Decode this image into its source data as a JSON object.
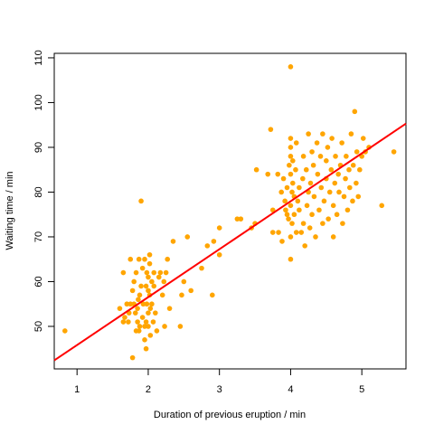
{
  "chart_data": {
    "type": "scatter",
    "title": "",
    "xlabel": "Duration of previous eruption / min",
    "ylabel": "Waiting time / min",
    "xlim": [
      0.68,
      5.62
    ],
    "ylim": [
      40.5,
      111.0
    ],
    "xticks": [
      1,
      2,
      3,
      4,
      5
    ],
    "yticks": [
      50,
      60,
      70,
      80,
      90,
      100,
      110
    ],
    "grid": false,
    "point_color": "#FFA500",
    "line_color": "#FF0000",
    "regression_line": {
      "x": [
        0.68,
        5.62
      ],
      "y": [
        42.4,
        95.3
      ]
    },
    "series": [
      {
        "values": [
          [
            0.83,
            49
          ],
          [
            1.6,
            54
          ],
          [
            1.65,
            51
          ],
          [
            1.65,
            62
          ],
          [
            1.67,
            52
          ],
          [
            1.7,
            55
          ],
          [
            1.72,
            51
          ],
          [
            1.73,
            53
          ],
          [
            1.75,
            55
          ],
          [
            1.75,
            65
          ],
          [
            1.78,
            58
          ],
          [
            1.78,
            43
          ],
          [
            1.8,
            55
          ],
          [
            1.8,
            60
          ],
          [
            1.82,
            53
          ],
          [
            1.83,
            49
          ],
          [
            1.83,
            62
          ],
          [
            1.85,
            54
          ],
          [
            1.85,
            51
          ],
          [
            1.86,
            56
          ],
          [
            1.87,
            65
          ],
          [
            1.87,
            49
          ],
          [
            1.88,
            57
          ],
          [
            1.88,
            50
          ],
          [
            1.9,
            78
          ],
          [
            1.9,
            59
          ],
          [
            1.92,
            52
          ],
          [
            1.92,
            63
          ],
          [
            1.93,
            55
          ],
          [
            1.95,
            50
          ],
          [
            1.95,
            65
          ],
          [
            1.95,
            47
          ],
          [
            1.97,
            51
          ],
          [
            1.97,
            59
          ],
          [
            1.97,
            45
          ],
          [
            1.98,
            62
          ],
          [
            1.98,
            55
          ],
          [
            2.0,
            58
          ],
          [
            2.0,
            53
          ],
          [
            2.0,
            50
          ],
          [
            2.0,
            61
          ],
          [
            2.02,
            64
          ],
          [
            2.02,
            57
          ],
          [
            2.02,
            66
          ],
          [
            2.03,
            54
          ],
          [
            2.03,
            48
          ],
          [
            2.05,
            60
          ],
          [
            2.05,
            55
          ],
          [
            2.07,
            51
          ],
          [
            2.08,
            62
          ],
          [
            2.08,
            59
          ],
          [
            2.1,
            53
          ],
          [
            2.12,
            49
          ],
          [
            2.15,
            61
          ],
          [
            2.17,
            62
          ],
          [
            2.2,
            57
          ],
          [
            2.22,
            60
          ],
          [
            2.23,
            50
          ],
          [
            2.25,
            62
          ],
          [
            2.27,
            65
          ],
          [
            2.3,
            54
          ],
          [
            2.35,
            69
          ],
          [
            2.45,
            50
          ],
          [
            2.47,
            57
          ],
          [
            2.5,
            60
          ],
          [
            2.55,
            70
          ],
          [
            2.6,
            58
          ],
          [
            2.75,
            63
          ],
          [
            2.83,
            68
          ],
          [
            2.9,
            57
          ],
          [
            2.92,
            69
          ],
          [
            3.0,
            72
          ],
          [
            3.0,
            66
          ],
          [
            3.25,
            74
          ],
          [
            3.3,
            74
          ],
          [
            3.45,
            72
          ],
          [
            3.5,
            73
          ],
          [
            3.52,
            85
          ],
          [
            3.68,
            84
          ],
          [
            3.72,
            94
          ],
          [
            3.75,
            71
          ],
          [
            3.75,
            76
          ],
          [
            3.82,
            84
          ],
          [
            3.83,
            71
          ],
          [
            3.87,
            80
          ],
          [
            3.88,
            69
          ],
          [
            3.9,
            83
          ],
          [
            3.92,
            78
          ],
          [
            3.93,
            76
          ],
          [
            3.95,
            75
          ],
          [
            3.95,
            81
          ],
          [
            3.97,
            74
          ],
          [
            3.98,
            86
          ],
          [
            4.0,
            108
          ],
          [
            4.0,
            65
          ],
          [
            4.0,
            70
          ],
          [
            4.0,
            77
          ],
          [
            4.0,
            84
          ],
          [
            4.0,
            88
          ],
          [
            4.0,
            90
          ],
          [
            4.0,
            92
          ],
          [
            4.02,
            73
          ],
          [
            4.02,
            80
          ],
          [
            4.03,
            82
          ],
          [
            4.03,
            87
          ],
          [
            4.05,
            75
          ],
          [
            4.05,
            79
          ],
          [
            4.07,
            85
          ],
          [
            4.08,
            91
          ],
          [
            4.08,
            71
          ],
          [
            4.1,
            78
          ],
          [
            4.12,
            81
          ],
          [
            4.12,
            76
          ],
          [
            4.15,
            71
          ],
          [
            4.17,
            83
          ],
          [
            4.18,
            88
          ],
          [
            4.18,
            73
          ],
          [
            4.2,
            68
          ],
          [
            4.22,
            85
          ],
          [
            4.23,
            77
          ],
          [
            4.25,
            80
          ],
          [
            4.25,
            93
          ],
          [
            4.27,
            72
          ],
          [
            4.28,
            82
          ],
          [
            4.3,
            89
          ],
          [
            4.3,
            75
          ],
          [
            4.32,
            86
          ],
          [
            4.33,
            79
          ],
          [
            4.35,
            70
          ],
          [
            4.37,
            91
          ],
          [
            4.38,
            84
          ],
          [
            4.4,
            76
          ],
          [
            4.42,
            88
          ],
          [
            4.43,
            81
          ],
          [
            4.45,
            73
          ],
          [
            4.45,
            93
          ],
          [
            4.47,
            78
          ],
          [
            4.5,
            87
          ],
          [
            4.5,
            83
          ],
          [
            4.52,
            90
          ],
          [
            4.53,
            74
          ],
          [
            4.55,
            80
          ],
          [
            4.57,
            85
          ],
          [
            4.58,
            92
          ],
          [
            4.6,
            77
          ],
          [
            4.6,
            70
          ],
          [
            4.62,
            82
          ],
          [
            4.63,
            88
          ],
          [
            4.65,
            75
          ],
          [
            4.67,
            84
          ],
          [
            4.68,
            80
          ],
          [
            4.7,
            86
          ],
          [
            4.72,
            91
          ],
          [
            4.73,
            73
          ],
          [
            4.75,
            79
          ],
          [
            4.77,
            83
          ],
          [
            4.78,
            88
          ],
          [
            4.8,
            76
          ],
          [
            4.82,
            85
          ],
          [
            4.83,
            81
          ],
          [
            4.85,
            93
          ],
          [
            4.87,
            78
          ],
          [
            4.88,
            86
          ],
          [
            4.9,
            98
          ],
          [
            4.92,
            82
          ],
          [
            4.93,
            89
          ],
          [
            4.95,
            79
          ],
          [
            4.97,
            85
          ],
          [
            5.0,
            88
          ],
          [
            5.02,
            92
          ],
          [
            5.05,
            89
          ],
          [
            5.1,
            90
          ],
          [
            5.28,
            77
          ],
          [
            5.45,
            89
          ]
        ]
      }
    ]
  }
}
